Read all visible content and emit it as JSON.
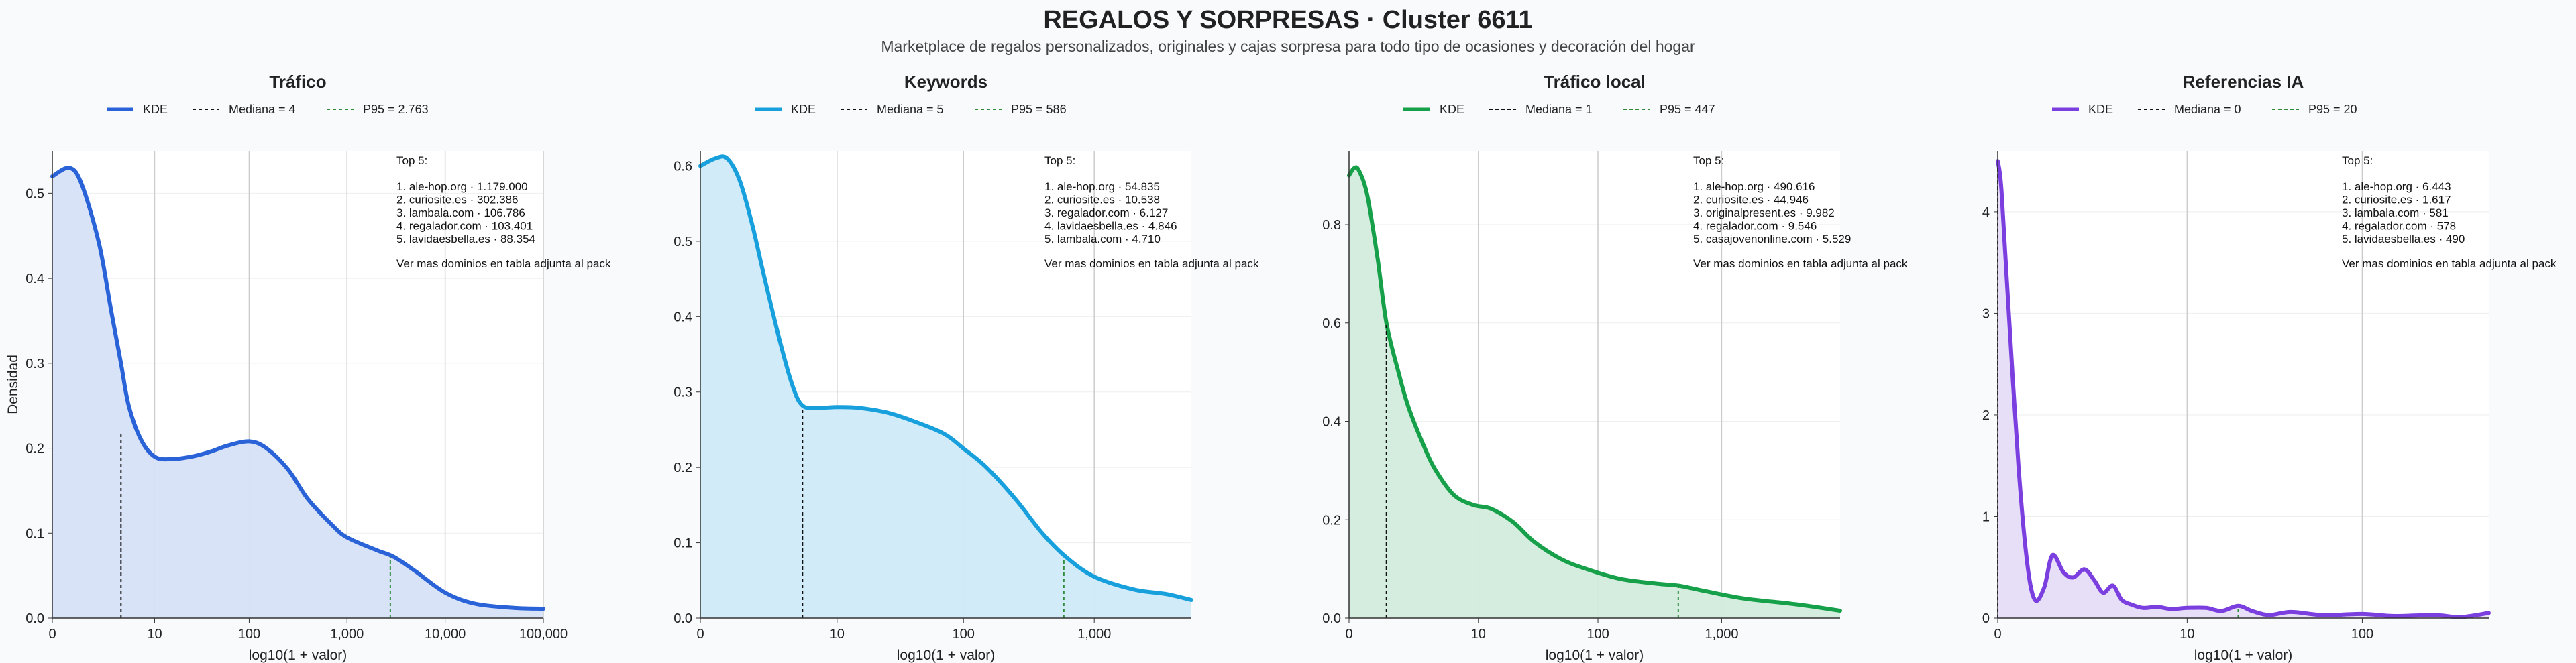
{
  "title": "REGALOS Y SORPRESAS · Cluster 6611",
  "subtitle": "Marketplace de regalos personalizados, originales y cajas sorpresa para todo tipo de ocasiones y decoración del hogar",
  "colors": {
    "background": "#f8fafc",
    "axis": "#333333",
    "grid": "#cccccc"
  },
  "chart_data": [
    {
      "type": "area",
      "title": "Tráfico",
      "xlabel": "log10(1 + valor)",
      "ylabel": "Densidad",
      "color": "#2a62d8",
      "fill": "#d7e2f8",
      "xscale": "log10(1 + valor)",
      "xlim": [
        0,
        100000
      ],
      "ylim": [
        0,
        0.55
      ],
      "xticks": [
        0,
        10,
        100,
        1000,
        10000,
        100000
      ],
      "xtick_labels": [
        "0",
        "10",
        "100",
        "1,000",
        "10,000",
        "100,000"
      ],
      "yticks": [
        0,
        0.1,
        0.2,
        0.3,
        0.4,
        0.5
      ],
      "ytick_labels": [
        "0.0",
        "0.1",
        "0.2",
        "0.3",
        "0.4",
        "0.5"
      ],
      "legend": {
        "kde": "KDE",
        "median": "Mediana = 4",
        "p95": "P95 = 2.763"
      },
      "median": {
        "value": 4,
        "density": 0.22
      },
      "p95": {
        "value": 2763,
        "density": 0.072
      },
      "x": [
        0,
        0.5,
        1,
        2,
        3,
        4,
        5,
        7,
        10,
        15,
        25,
        40,
        60,
        100,
        150,
        250,
        400,
        700,
        1000,
        2000,
        3000,
        5000,
        10000,
        20000,
        50000,
        100000
      ],
      "y": [
        0.52,
        0.53,
        0.51,
        0.44,
        0.36,
        0.3,
        0.25,
        0.21,
        0.19,
        0.187,
        0.19,
        0.196,
        0.203,
        0.208,
        0.2,
        0.175,
        0.14,
        0.11,
        0.095,
        0.08,
        0.072,
        0.055,
        0.03,
        0.017,
        0.012,
        0.011
      ],
      "annotation": {
        "heading": "Top 5:",
        "items": [
          "1. ale-hop.org · 1.179.000",
          "2. curiosite.es · 302.386",
          "3. lambala.com · 106.786",
          "4. regalador.com · 103.401",
          "5. lavidaesbella.es · 88.354"
        ],
        "footer": "Ver mas dominios en tabla adjunta al pack"
      }
    },
    {
      "type": "area",
      "title": "Keywords",
      "xlabel": "log10(1 + valor)",
      "ylabel": "",
      "color": "#18a0dd",
      "fill": "#cfeaf8",
      "xscale": "log10(1 + valor)",
      "xlim": [
        0,
        5500
      ],
      "ylim": [
        0,
        0.62
      ],
      "xticks": [
        0,
        10,
        100,
        1000
      ],
      "xtick_labels": [
        "0",
        "10",
        "100",
        "1,000"
      ],
      "yticks": [
        0,
        0.1,
        0.2,
        0.3,
        0.4,
        0.5,
        0.6
      ],
      "ytick_labels": [
        "0.0",
        "0.1",
        "0.2",
        "0.3",
        "0.4",
        "0.5",
        "0.6"
      ],
      "legend": {
        "kde": "KDE",
        "median": "Mediana = 5",
        "p95": "P95 = 586"
      },
      "median": {
        "value": 5,
        "density": 0.28
      },
      "p95": {
        "value": 586,
        "density": 0.08
      },
      "x": [
        0,
        0.3,
        0.6,
        1,
        1.5,
        2,
        3,
        4,
        5,
        7,
        10,
        15,
        25,
        40,
        70,
        100,
        150,
        250,
        400,
        600,
        1000,
        2000,
        3500,
        5500
      ],
      "y": [
        0.6,
        0.61,
        0.61,
        0.58,
        0.52,
        0.46,
        0.37,
        0.31,
        0.282,
        0.279,
        0.28,
        0.279,
        0.273,
        0.262,
        0.245,
        0.225,
        0.2,
        0.158,
        0.113,
        0.082,
        0.055,
        0.038,
        0.032,
        0.024
      ],
      "annotation": {
        "heading": "Top 5:",
        "items": [
          "1. ale-hop.org · 54.835",
          "2. curiosite.es · 10.538",
          "3. regalador.com · 6.127",
          "4. lavidaesbella.es · 4.846",
          "5. lambala.com · 4.710"
        ],
        "footer": "Ver mas dominios en tabla adjunta al pack"
      }
    },
    {
      "type": "area",
      "title": "Tráfico local",
      "xlabel": "log10(1 + valor)",
      "ylabel": "",
      "color": "#16a04a",
      "fill": "#d2ecdc",
      "xscale": "log10(1 + valor)",
      "xlim": [
        0,
        9000
      ],
      "ylim": [
        0,
        0.95
      ],
      "xticks": [
        0,
        10,
        100,
        1000
      ],
      "xtick_labels": [
        "0",
        "10",
        "100",
        "1,000"
      ],
      "yticks": [
        0,
        0.2,
        0.4,
        0.6,
        0.8
      ],
      "ytick_labels": [
        "0.0",
        "0.2",
        "0.4",
        "0.6",
        "0.8"
      ],
      "legend": {
        "kde": "KDE",
        "median": "Mediana = 1",
        "p95": "P95 = 447"
      },
      "median": {
        "value": 1,
        "density": 0.6
      },
      "p95": {
        "value": 447,
        "density": 0.066
      },
      "x": [
        0,
        0.1,
        0.2,
        0.4,
        0.7,
        1,
        1.5,
        2,
        3,
        4,
        6,
        9,
        13,
        20,
        30,
        50,
        80,
        150,
        300,
        450,
        700,
        1500,
        4000,
        9000
      ],
      "y": [
        0.9,
        0.915,
        0.91,
        0.86,
        0.73,
        0.6,
        0.5,
        0.43,
        0.35,
        0.3,
        0.25,
        0.23,
        0.222,
        0.195,
        0.155,
        0.12,
        0.1,
        0.08,
        0.07,
        0.066,
        0.056,
        0.04,
        0.028,
        0.015
      ],
      "annotation": {
        "heading": "Top 5:",
        "items": [
          "1. ale-hop.org · 490.616",
          "2. curiosite.es · 44.946",
          "3. originalpresent.es · 9.982",
          "4. regalador.com · 9.546",
          "5. casajovenonline.com · 5.529"
        ],
        "footer": "Ver mas dominios en tabla adjunta al pack"
      }
    },
    {
      "type": "area",
      "title": "Referencias IA",
      "xlabel": "log10(1 + valor)",
      "ylabel": "",
      "color": "#7b3fe0",
      "fill": "#e6dcf8",
      "xscale": "log10(1 + valor)",
      "xlim": [
        0,
        500
      ],
      "ylim": [
        0,
        4.6
      ],
      "xticks": [
        0,
        10,
        100
      ],
      "xtick_labels": [
        "0",
        "10",
        "100"
      ],
      "yticks": [
        0,
        1,
        2,
        3,
        4
      ],
      "ytick_labels": [
        "0",
        "1",
        "2",
        "3",
        "4"
      ],
      "legend": {
        "kde": "KDE",
        "median": "Mediana = 0",
        "p95": "P95 = 20"
      },
      "median": {
        "value": 0,
        "density": 4.45
      },
      "p95": {
        "value": 20,
        "density": 0.12
      },
      "x": [
        0,
        0.05,
        0.15,
        0.3,
        0.45,
        0.6,
        0.8,
        1.0,
        1.3,
        1.6,
        2.0,
        2.4,
        2.8,
        3.3,
        3.8,
        4.5,
        5.3,
        6.5,
        8,
        10,
        13,
        16,
        20,
        24,
        30,
        40,
        60,
        100,
        150,
        250,
        350,
        500
      ],
      "y": [
        4.5,
        4.2,
        3.0,
        1.5,
        0.55,
        0.18,
        0.3,
        0.62,
        0.45,
        0.4,
        0.48,
        0.37,
        0.25,
        0.32,
        0.18,
        0.13,
        0.1,
        0.11,
        0.09,
        0.1,
        0.1,
        0.07,
        0.12,
        0.07,
        0.03,
        0.06,
        0.03,
        0.04,
        0.02,
        0.03,
        0.01,
        0.05
      ],
      "annotation": {
        "heading": "Top 5:",
        "items": [
          "1. ale-hop.org · 6.443",
          "2. curiosite.es · 1.617",
          "3. lambala.com · 581",
          "4. regalador.com · 578",
          "5. lavidaesbella.es · 490"
        ],
        "footer": "Ver mas dominios en tabla adjunta al pack"
      }
    }
  ]
}
